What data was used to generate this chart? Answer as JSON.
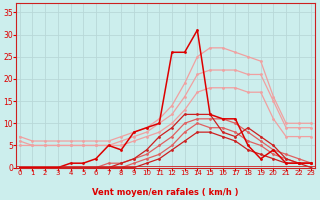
{
  "x": [
    0,
    1,
    2,
    3,
    4,
    5,
    6,
    7,
    8,
    9,
    10,
    11,
    12,
    13,
    14,
    15,
    16,
    17,
    18,
    19,
    20,
    21,
    22,
    23
  ],
  "line_pale_upper": [
    7,
    6,
    6,
    6,
    6,
    6,
    6,
    6,
    7,
    8,
    9,
    11,
    14,
    19,
    25,
    27,
    27,
    26,
    25,
    24,
    16,
    10,
    10,
    10
  ],
  "line_pale_lower": [
    6,
    5,
    5,
    5,
    5,
    5,
    5,
    5,
    6,
    7,
    8,
    10,
    12,
    16,
    21,
    22,
    22,
    22,
    21,
    21,
    15,
    9,
    9,
    9
  ],
  "line_pale_mid": [
    5,
    5,
    5,
    5,
    5,
    5,
    5,
    5,
    5,
    6,
    7,
    8,
    10,
    13,
    17,
    18,
    18,
    18,
    17,
    17,
    11,
    7,
    7,
    7
  ],
  "line_medium1": [
    0,
    0,
    0,
    0,
    0,
    0,
    0,
    1,
    1,
    2,
    3,
    5,
    7,
    10,
    11,
    11,
    11,
    10,
    8,
    6,
    4,
    3,
    2,
    1
  ],
  "line_medium2": [
    0,
    0,
    0,
    0,
    0,
    0,
    0,
    0,
    0,
    1,
    2,
    3,
    5,
    8,
    10,
    9,
    9,
    8,
    6,
    5,
    3,
    2,
    1,
    1
  ],
  "line_dark1": [
    0,
    0,
    0,
    0,
    0,
    0,
    0,
    0,
    1,
    2,
    4,
    7,
    9,
    12,
    12,
    12,
    8,
    7,
    9,
    7,
    5,
    2,
    1,
    1
  ],
  "line_dark2": [
    0,
    0,
    0,
    0,
    0,
    0,
    0,
    0,
    0,
    0,
    1,
    2,
    4,
    6,
    8,
    8,
    7,
    6,
    4,
    3,
    2,
    1,
    1,
    0
  ],
  "line_bright": [
    0,
    0,
    0,
    0,
    1,
    1,
    2,
    5,
    4,
    8,
    9,
    10,
    26,
    26,
    31,
    12,
    11,
    11,
    5,
    2,
    4,
    1,
    1,
    1
  ],
  "bg_color": "#cceeed",
  "grid_color": "#aadddd",
  "color_pale": "#f0a0a0",
  "color_medium": "#e06060",
  "color_dark": "#cc2020",
  "color_bright": "#dd0000",
  "xlabel": "Vent moyen/en rafales ( km/h )",
  "yticks": [
    0,
    5,
    10,
    15,
    20,
    25,
    30,
    35
  ],
  "xticks": [
    0,
    1,
    2,
    3,
    4,
    5,
    6,
    7,
    8,
    9,
    10,
    11,
    12,
    13,
    14,
    15,
    16,
    17,
    18,
    19,
    20,
    21,
    22,
    23
  ],
  "ylim": [
    0,
    37
  ],
  "xlim": [
    -0.3,
    23.3
  ]
}
